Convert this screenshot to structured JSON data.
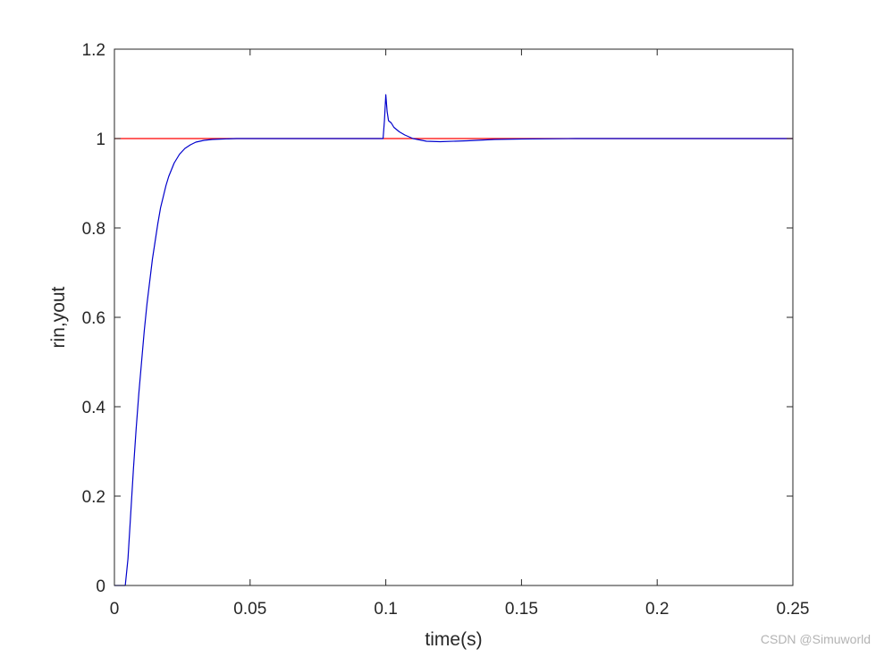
{
  "chart_data": {
    "type": "line",
    "title": "",
    "xlabel": "time(s)",
    "ylabel": "rin,yout",
    "xlim": [
      0,
      0.25
    ],
    "ylim": [
      0,
      1.2
    ],
    "xticks": [
      0,
      0.05,
      0.1,
      0.15,
      0.2,
      0.25
    ],
    "xtick_labels": [
      "0",
      "0.05",
      "0.1",
      "0.15",
      "0.2",
      "0.25"
    ],
    "yticks": [
      0,
      0.2,
      0.4,
      0.6,
      0.8,
      1.0,
      1.2
    ],
    "ytick_labels": [
      "0",
      "0.2",
      "0.4",
      "0.6",
      "0.8",
      "1",
      "1.2"
    ],
    "grid": false,
    "series": [
      {
        "color": "#ff0000",
        "x": [
          0,
          0.25
        ],
        "y": [
          1,
          1
        ]
      },
      {
        "color": "#0000cc",
        "x": [
          0,
          0.004,
          0.005,
          0.006,
          0.007,
          0.008,
          0.009,
          0.01,
          0.011,
          0.012,
          0.013,
          0.014,
          0.015,
          0.016,
          0.017,
          0.018,
          0.019,
          0.02,
          0.022,
          0.024,
          0.026,
          0.028,
          0.03,
          0.033,
          0.036,
          0.04,
          0.045,
          0.05,
          0.06,
          0.07,
          0.08,
          0.09,
          0.099,
          0.0995,
          0.1,
          0.1005,
          0.101,
          0.102,
          0.103,
          0.104,
          0.105,
          0.107,
          0.11,
          0.115,
          0.12,
          0.13,
          0.14,
          0.15,
          0.17,
          0.2,
          0.25
        ],
        "y": [
          0,
          0,
          0.06,
          0.16,
          0.26,
          0.35,
          0.43,
          0.5,
          0.57,
          0.63,
          0.68,
          0.73,
          0.77,
          0.81,
          0.845,
          0.87,
          0.895,
          0.915,
          0.945,
          0.965,
          0.978,
          0.986,
          0.992,
          0.996,
          0.998,
          0.999,
          1.0,
          1.0,
          1.0,
          1.0,
          1.0,
          1.0,
          1.0,
          1.04,
          1.098,
          1.06,
          1.04,
          1.035,
          1.025,
          1.02,
          1.015,
          1.008,
          1.0,
          0.994,
          0.993,
          0.995,
          0.998,
          0.999,
          1.0,
          1.0,
          1.0
        ]
      }
    ]
  },
  "watermark": "CSDN @Simuworld"
}
